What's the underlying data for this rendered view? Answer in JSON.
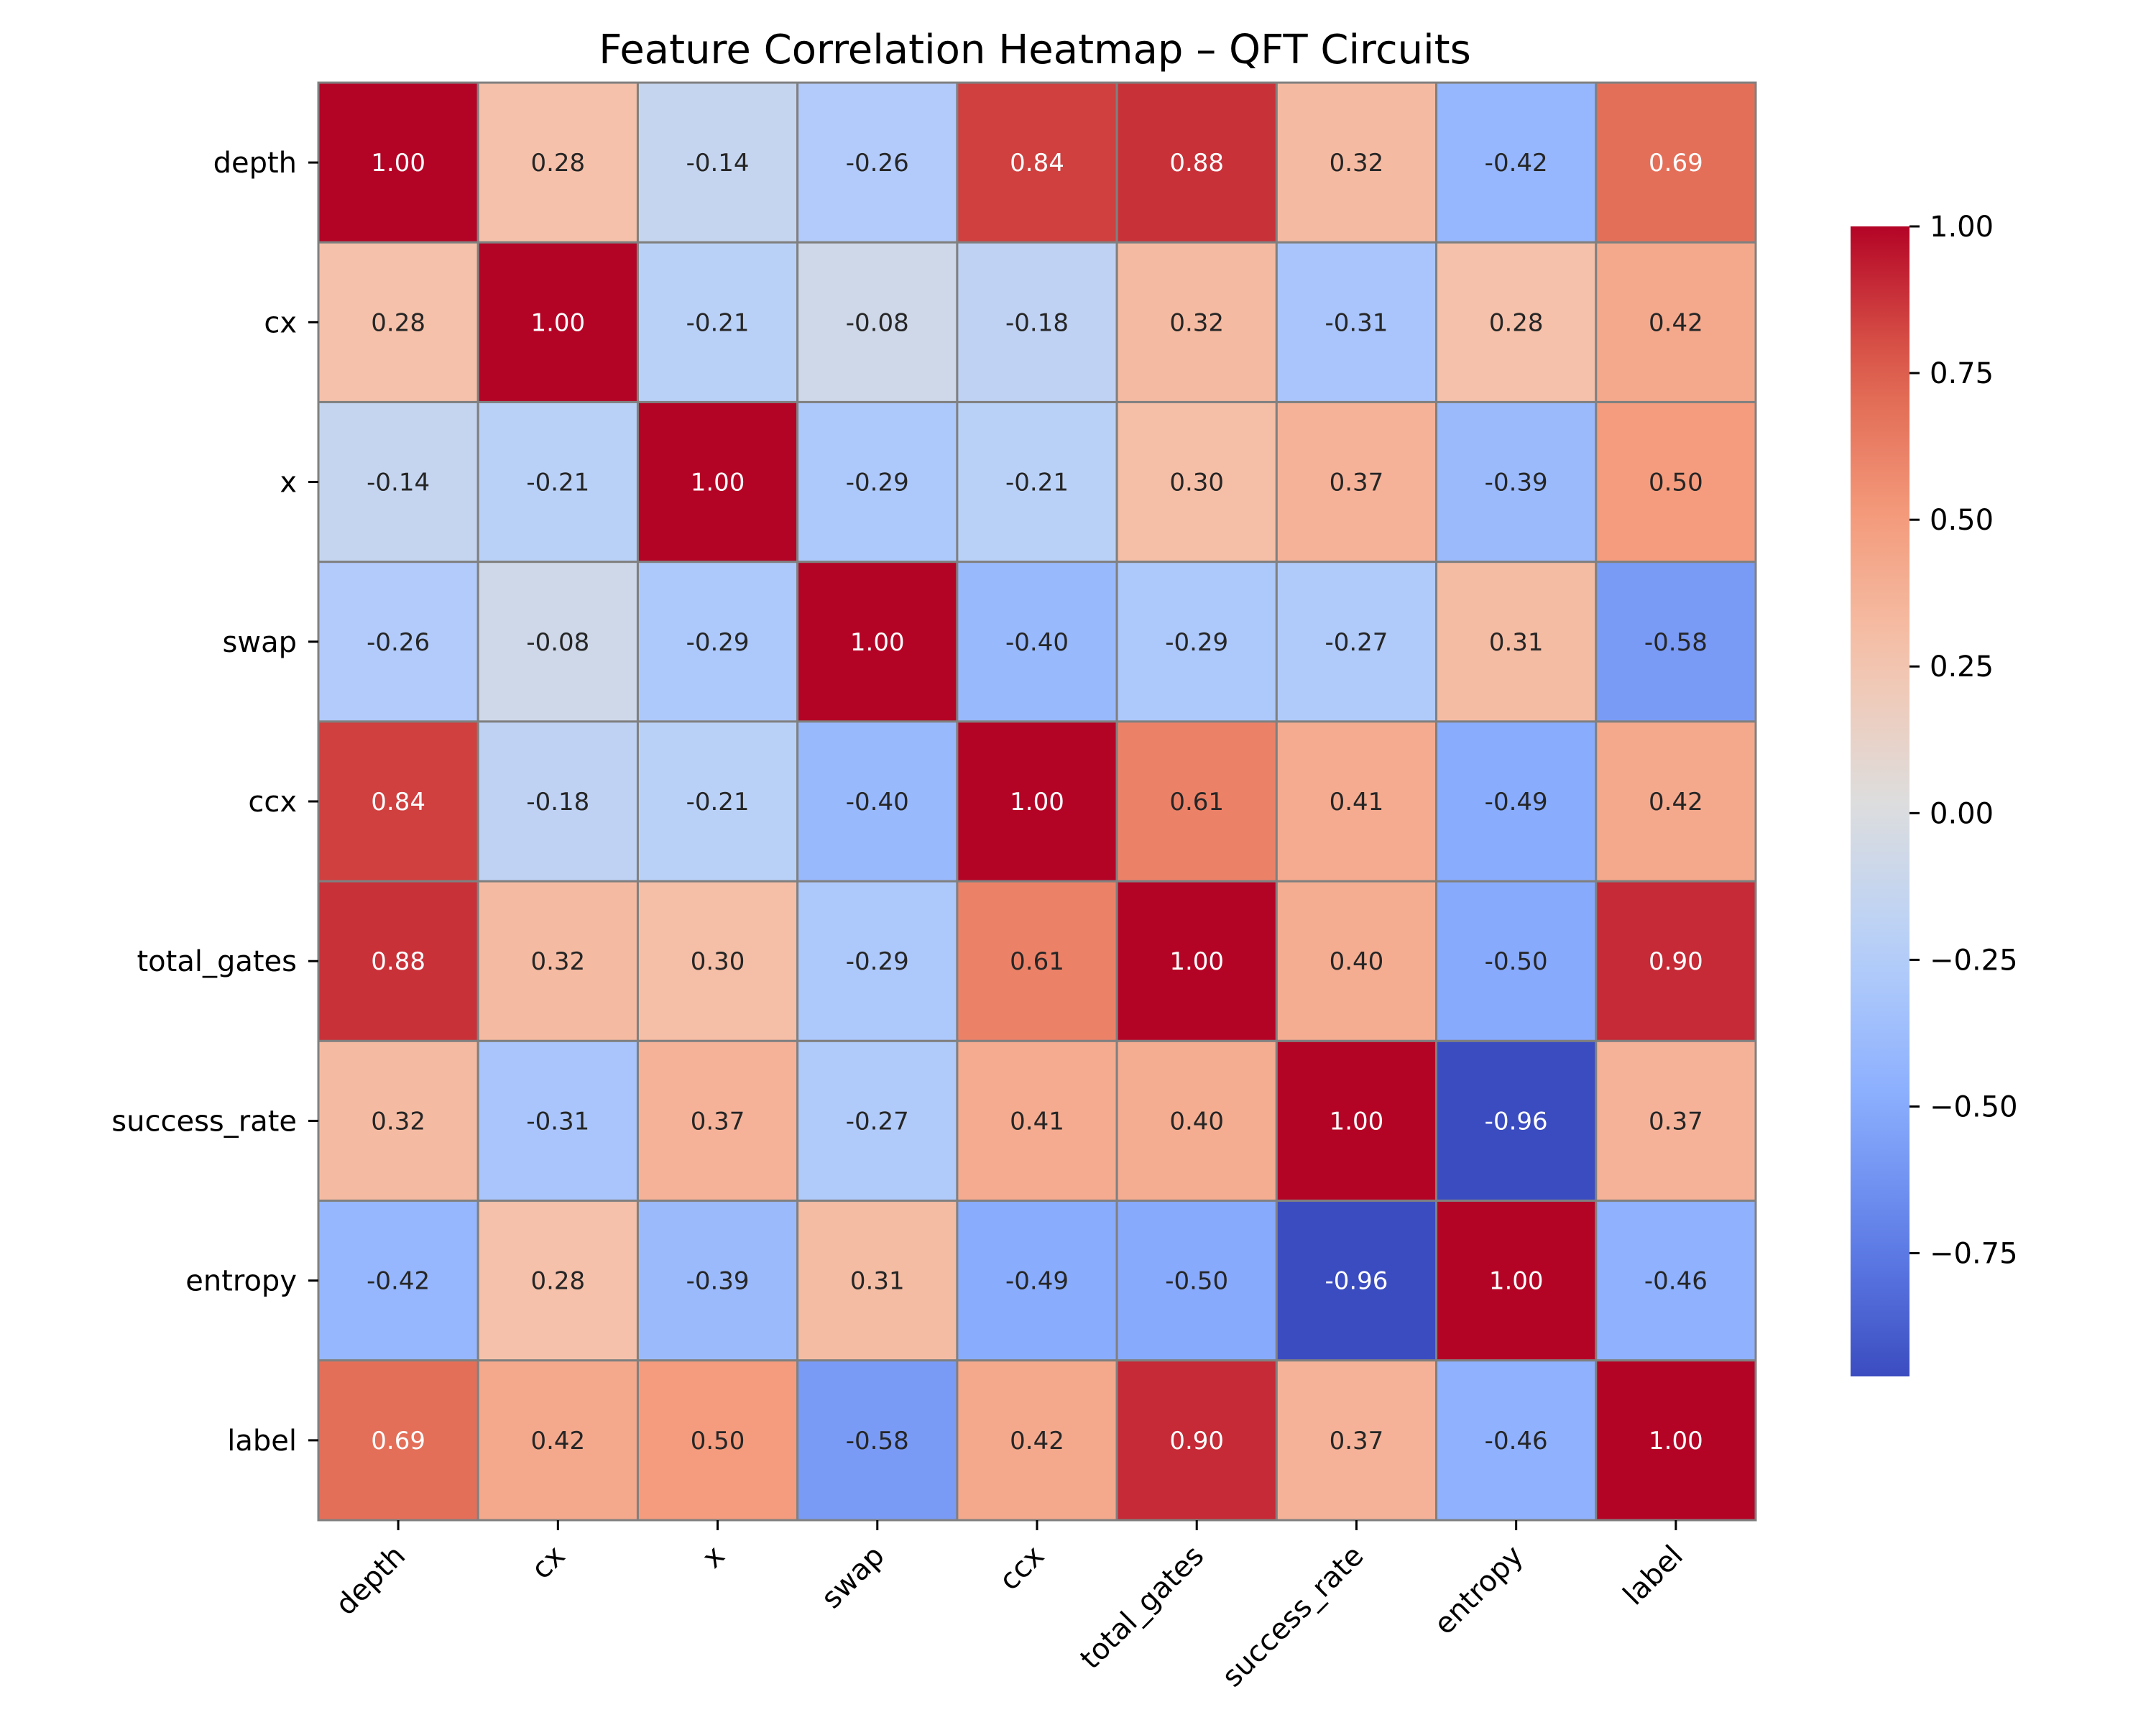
{
  "chart_data": {
    "type": "heatmap",
    "title": "Feature Correlation Heatmap – QFT Circuits",
    "xlabel": "",
    "ylabel": "",
    "x_categories": [
      "depth",
      "cx",
      "x",
      "swap",
      "ccx",
      "total_gates",
      "success_rate",
      "entropy",
      "label"
    ],
    "y_categories": [
      "depth",
      "cx",
      "x",
      "swap",
      "ccx",
      "total_gates",
      "success_rate",
      "entropy",
      "label"
    ],
    "values": [
      [
        1.0,
        0.28,
        -0.14,
        -0.26,
        0.84,
        0.88,
        0.32,
        -0.42,
        0.69
      ],
      [
        0.28,
        1.0,
        -0.21,
        -0.08,
        -0.18,
        0.32,
        -0.31,
        0.28,
        0.42
      ],
      [
        -0.14,
        -0.21,
        1.0,
        -0.29,
        -0.21,
        0.3,
        0.37,
        -0.39,
        0.5
      ],
      [
        -0.26,
        -0.08,
        -0.29,
        1.0,
        -0.4,
        -0.29,
        -0.27,
        0.31,
        -0.58
      ],
      [
        0.84,
        -0.18,
        -0.21,
        -0.4,
        1.0,
        0.61,
        0.41,
        -0.49,
        0.42
      ],
      [
        0.88,
        0.32,
        0.3,
        -0.29,
        0.61,
        1.0,
        0.4,
        -0.5,
        0.9
      ],
      [
        0.32,
        -0.31,
        0.37,
        -0.27,
        0.41,
        0.4,
        1.0,
        -0.96,
        0.37
      ],
      [
        -0.42,
        0.28,
        -0.39,
        0.31,
        -0.49,
        -0.5,
        -0.96,
        1.0,
        -0.46
      ],
      [
        0.69,
        0.42,
        0.5,
        -0.58,
        0.42,
        0.9,
        0.37,
        -0.46,
        1.0
      ]
    ],
    "value_format": "2 decimals",
    "colormap": "coolwarm",
    "colorbar": {
      "range": [
        -0.96,
        1.0
      ],
      "ticks": [
        1.0,
        0.75,
        0.5,
        0.25,
        0.0,
        -0.25,
        -0.5,
        -0.75
      ],
      "tick_labels": [
        "1.00",
        "0.75",
        "0.50",
        "0.25",
        "0.00",
        "−0.25",
        "−0.50",
        "−0.75"
      ],
      "placement": "right"
    },
    "grid": true,
    "cell_border_color": "#808080",
    "annotation_color_dark_cells": "#ffffff",
    "annotation_color_light_cells": "#262626"
  }
}
